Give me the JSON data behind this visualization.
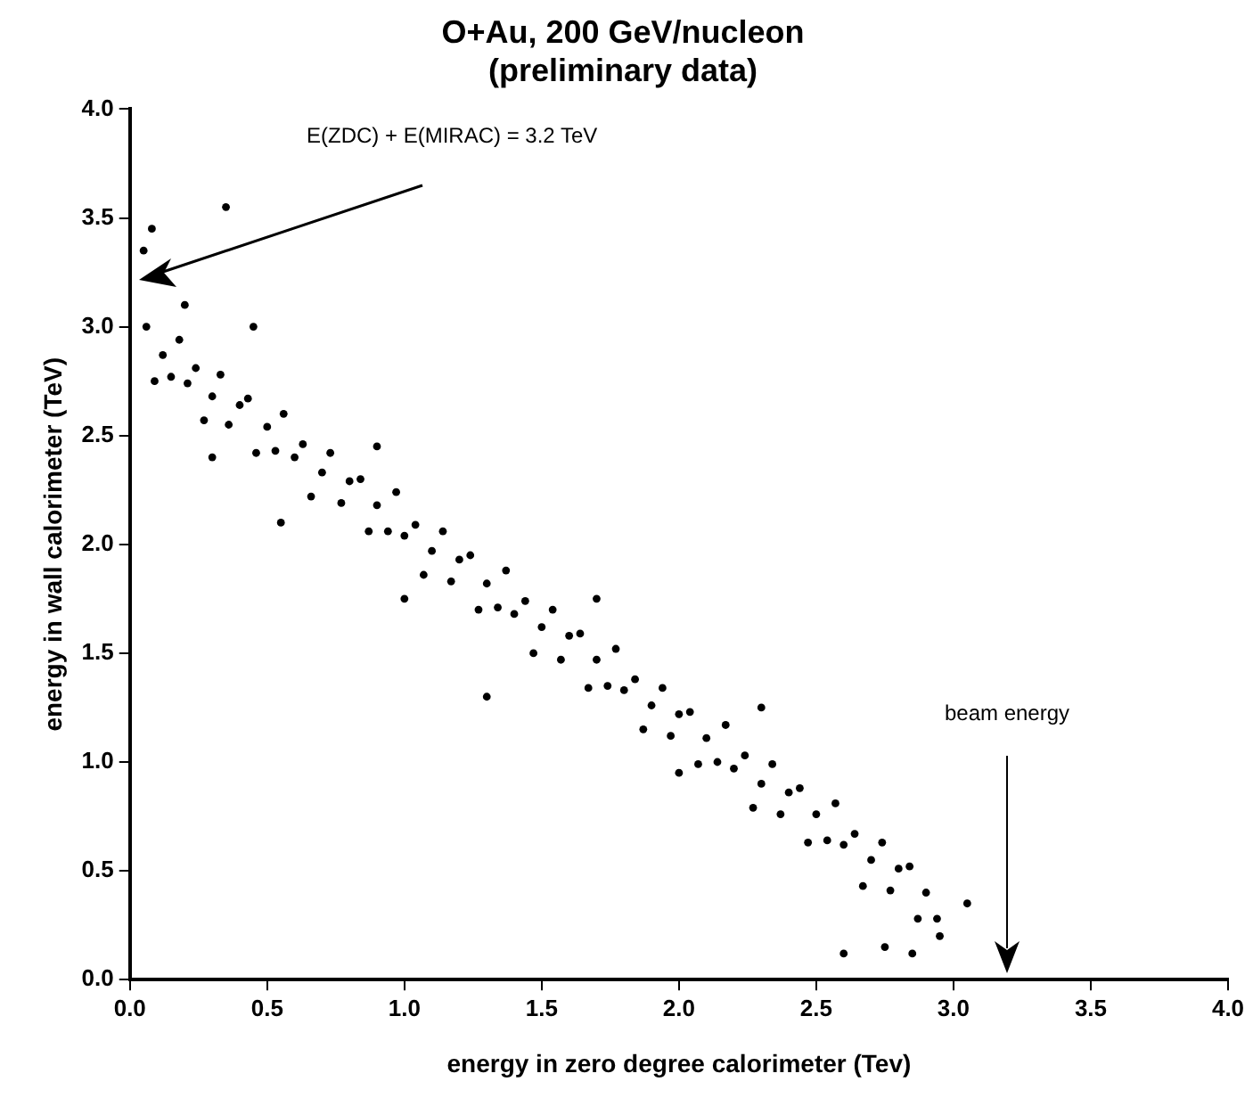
{
  "chart_data": {
    "type": "scatter",
    "title": "O+Au, 200 GeV/nucleon\n(preliminary data)",
    "xlabel": "energy in zero degree calorimeter (Tev)",
    "ylabel": "energy in wall calorimeter (TeV)",
    "annotations": [
      "E(ZDC) + E(MIRAC) = 3.2 TeV",
      "beam energy"
    ],
    "x": [
      0.06,
      0.09,
      0.12,
      0.15,
      0.18,
      0.21,
      0.24,
      0.27,
      0.3,
      0.33,
      0.36,
      0.4,
      0.43,
      0.46,
      0.5,
      0.53,
      0.56,
      0.6,
      0.63,
      0.66,
      0.7,
      0.73,
      0.77,
      0.8,
      0.84,
      0.87,
      0.9,
      0.94,
      0.97,
      1.0,
      1.04,
      1.07,
      1.1,
      1.14,
      1.17,
      1.2,
      1.24,
      1.27,
      1.3,
      1.34,
      1.37,
      1.4,
      1.44,
      1.47,
      1.5,
      1.54,
      1.57,
      1.6,
      1.64,
      1.67,
      1.7,
      1.74,
      1.77,
      1.8,
      1.84,
      1.87,
      1.9,
      1.94,
      1.97,
      2.0,
      2.04,
      2.07,
      2.1,
      2.14,
      2.17,
      2.2,
      2.24,
      2.27,
      2.3,
      2.34,
      2.37,
      2.4,
      2.44,
      2.47,
      2.5,
      2.54,
      2.57,
      2.6,
      2.64,
      2.67,
      2.7,
      2.74,
      2.77,
      2.8,
      2.84,
      2.87,
      2.9,
      2.94,
      0.05,
      0.08,
      0.2,
      0.35,
      0.45,
      0.55,
      1.3,
      2.75,
      2.85,
      2.95,
      3.05,
      2.6,
      0.3,
      1.0,
      2.3,
      1.7,
      0.9,
      2.0
    ],
    "series": [
      {
        "color": "#000000",
        "values": [
          3.0,
          2.75,
          2.87,
          2.77,
          2.94,
          2.74,
          2.81,
          2.57,
          2.68,
          2.78,
          2.55,
          2.64,
          2.67,
          2.42,
          2.54,
          2.43,
          2.6,
          2.4,
          2.46,
          2.22,
          2.33,
          2.42,
          2.19,
          2.29,
          2.3,
          2.06,
          2.18,
          2.06,
          2.24,
          2.04,
          2.09,
          1.86,
          1.97,
          2.06,
          1.83,
          1.93,
          1.95,
          1.7,
          1.82,
          1.71,
          1.88,
          1.68,
          1.74,
          1.5,
          1.62,
          1.7,
          1.47,
          1.58,
          1.59,
          1.34,
          1.47,
          1.35,
          1.52,
          1.33,
          1.38,
          1.15,
          1.26,
          1.34,
          1.12,
          1.22,
          1.23,
          0.99,
          1.11,
          1.0,
          1.17,
          0.97,
          1.03,
          0.79,
          0.9,
          0.99,
          0.76,
          0.86,
          0.88,
          0.63,
          0.76,
          0.64,
          0.81,
          0.62,
          0.67,
          0.43,
          0.55,
          0.63,
          0.41,
          0.51,
          0.52,
          0.28,
          0.4,
          0.28,
          3.35,
          3.45,
          3.1,
          3.55,
          3.0,
          2.1,
          1.3,
          0.15,
          0.12,
          0.2,
          0.35,
          0.12,
          2.4,
          1.75,
          1.25,
          1.75,
          2.45,
          0.95
        ]
      }
    ],
    "xlim": [
      0,
      4.0
    ],
    "xticks": [
      {
        "value": 0,
        "label": "0.0"
      },
      {
        "value": 0.5,
        "label": "0.5"
      },
      {
        "value": 1,
        "label": "1.0"
      },
      {
        "value": 1.5,
        "label": "1.5"
      },
      {
        "value": 2,
        "label": "2.0"
      },
      {
        "value": 2.5,
        "label": "2.5"
      },
      {
        "value": 3,
        "label": "3.0"
      },
      {
        "value": 3.5,
        "label": "3.5"
      },
      {
        "value": 4,
        "label": "4.0"
      }
    ],
    "ylim": [
      0,
      4.0
    ],
    "yticks": [
      {
        "value": 0,
        "label": "0.0"
      },
      {
        "value": 0.5,
        "label": "0.5"
      },
      {
        "value": 1,
        "label": "1.0"
      },
      {
        "value": 1.5,
        "label": "1.5"
      },
      {
        "value": 2,
        "label": "2.0"
      },
      {
        "value": 2.5,
        "label": "2.5"
      },
      {
        "value": 3,
        "label": "3.0"
      },
      {
        "value": 3.5,
        "label": "3.5"
      },
      {
        "value": 4,
        "label": "4.0"
      }
    ],
    "grid": false,
    "legend": false,
    "marker": "circle"
  }
}
